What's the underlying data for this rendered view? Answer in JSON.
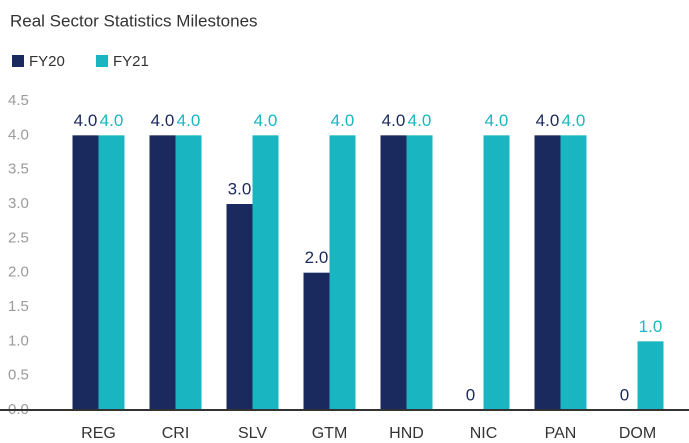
{
  "chart_data": {
    "type": "bar",
    "title": "Real Sector Statistics Milestones",
    "categories": [
      "REG",
      "CRI",
      "SLV",
      "GTM",
      "HND",
      "NIC",
      "PAN",
      "DOM"
    ],
    "series": [
      {
        "name": "FY20",
        "color": "#1b2a5e",
        "values": [
          4,
          4,
          3,
          2,
          4,
          0,
          4,
          0
        ],
        "value_labels": [
          "4.0",
          "4.0",
          "3.0",
          "2.0",
          "4.0",
          "0",
          "4.0",
          "0"
        ]
      },
      {
        "name": "FY21",
        "color": "#19b6c1",
        "values": [
          4,
          4,
          4,
          4,
          4,
          4,
          4,
          1
        ],
        "value_labels": [
          "4.0",
          "4.0",
          "4.0",
          "4.0",
          "4.0",
          "4.0",
          "4.0",
          "1.0"
        ]
      }
    ],
    "ylim": [
      0,
      4.5
    ],
    "yticks": [
      {
        "value": 0,
        "label": "0.0"
      },
      0.5,
      {
        "value": 1,
        "label": "1.0"
      },
      1.5,
      {
        "value": 2,
        "label": "2.0"
      },
      2.5,
      {
        "value": 3,
        "label": "3.0"
      },
      3.5,
      {
        "value": 4,
        "label": "4.0"
      },
      4.5
    ],
    "grid": false
  }
}
